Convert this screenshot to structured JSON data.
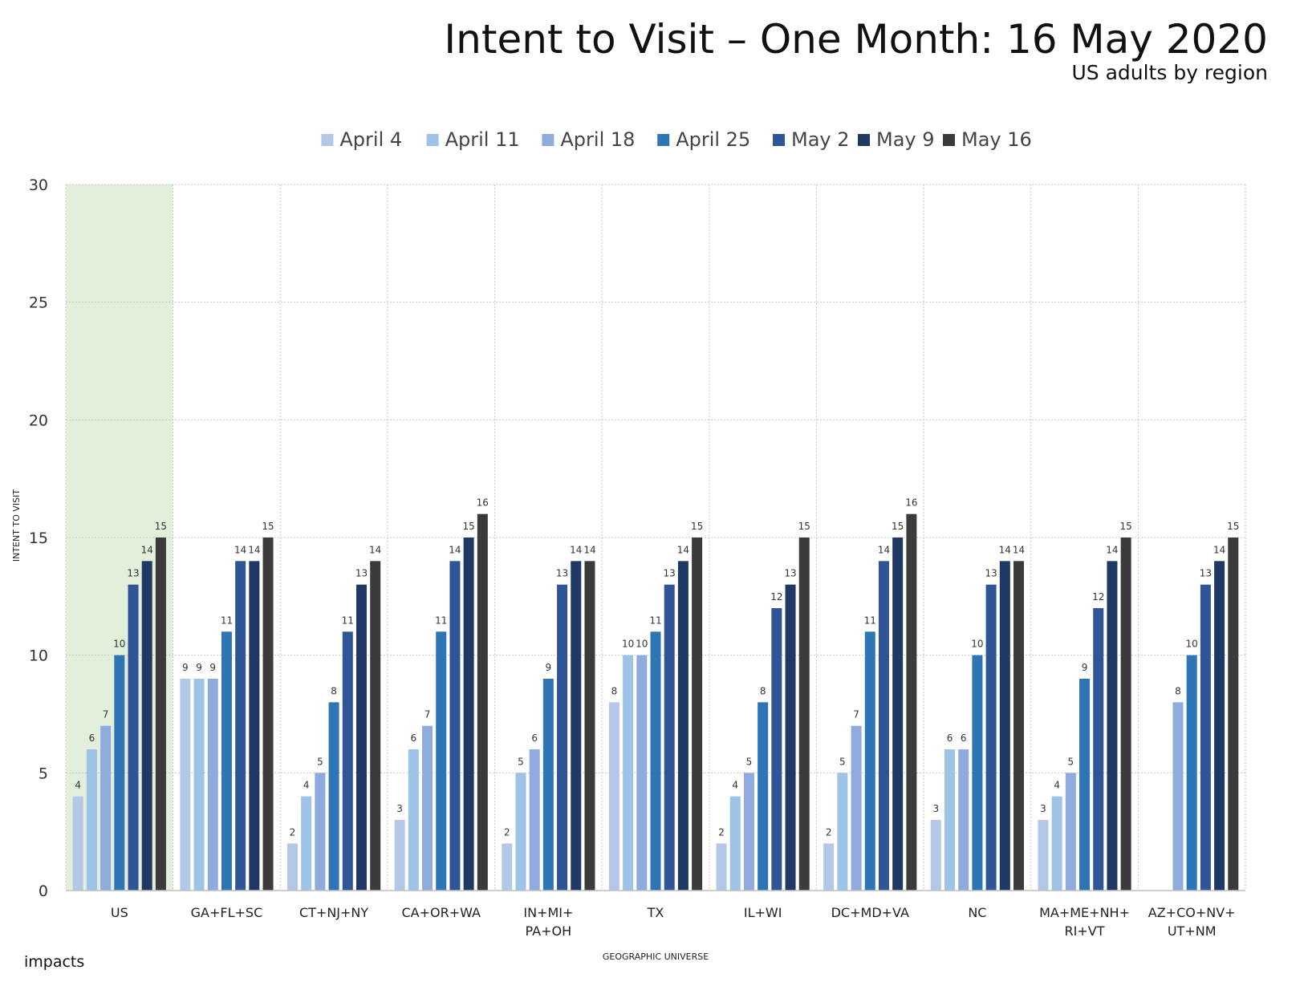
{
  "header": {
    "title": "Intent to Visit – One Month: 16 May 2020",
    "subtitle": "US adults by region"
  },
  "footer": {
    "logo_text": "impacts"
  },
  "chart_data": {
    "type": "bar",
    "title": "Intent to Visit – One Month: 16 May 2020",
    "subtitle": "US adults by region",
    "xlabel": "GEOGRAPHIC UNIVERSE",
    "ylabel": "INTENT TO VISIT",
    "ylim": [
      0,
      30
    ],
    "yticks": [
      0,
      5,
      10,
      15,
      20,
      25,
      30
    ],
    "grid": true,
    "legend_position": "top",
    "highlighted_category": "US",
    "highlight_color": "#e2efda",
    "categories": [
      [
        "US"
      ],
      [
        "GA+FL+SC"
      ],
      [
        "CT+NJ+NY"
      ],
      [
        "CA+OR+WA"
      ],
      [
        "IN+MI+",
        "PA+OH"
      ],
      [
        "TX"
      ],
      [
        "IL+WI"
      ],
      [
        "DC+MD+VA"
      ],
      [
        "NC"
      ],
      [
        "MA+ME+NH+",
        "RI+VT"
      ],
      [
        "AZ+CO+NV+",
        "UT+NM"
      ]
    ],
    "series": [
      {
        "name": "April 4",
        "color": "#b4c7e7",
        "values": [
          4,
          9,
          2,
          3,
          2,
          8,
          2,
          2,
          3,
          3,
          null
        ]
      },
      {
        "name": "April 11",
        "color": "#9dc3e6",
        "values": [
          6,
          9,
          4,
          6,
          5,
          10,
          4,
          5,
          6,
          4,
          null
        ]
      },
      {
        "name": "April 18",
        "color": "#8faadc",
        "values": [
          7,
          9,
          5,
          7,
          6,
          10,
          5,
          7,
          6,
          5,
          8
        ]
      },
      {
        "name": "April 25",
        "color": "#2e75b6",
        "values": [
          10,
          11,
          8,
          11,
          9,
          11,
          8,
          11,
          10,
          9,
          10
        ]
      },
      {
        "name": "May 2",
        "color": "#2f5597",
        "values": [
          13,
          14,
          11,
          14,
          13,
          13,
          12,
          14,
          13,
          12,
          13
        ]
      },
      {
        "name": "May 9",
        "color": "#203864",
        "values": [
          14,
          14,
          13,
          15,
          14,
          14,
          13,
          15,
          14,
          14,
          14
        ]
      },
      {
        "name": "May 16",
        "color": "#3b3b3b",
        "values": [
          15,
          15,
          14,
          16,
          14,
          15,
          15,
          16,
          14,
          15,
          15
        ]
      }
    ]
  }
}
